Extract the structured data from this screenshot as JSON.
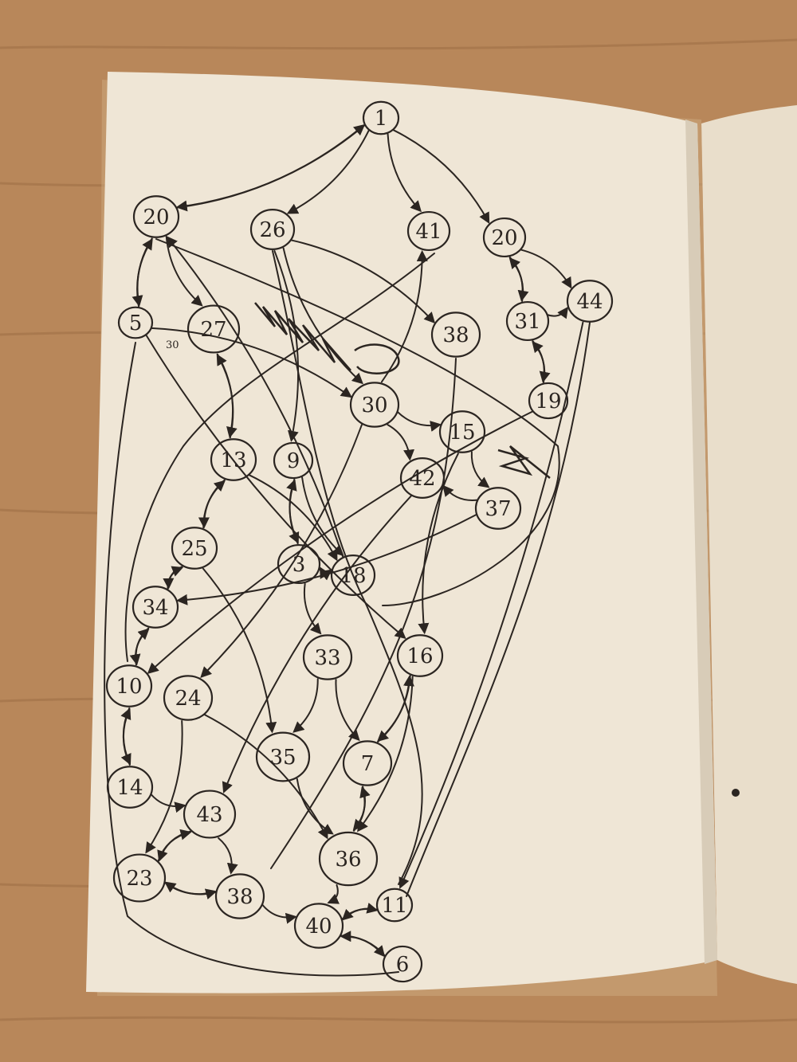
{
  "colors": {
    "desk": "#b8875a",
    "desk_grain": "#9c6d45",
    "page": "#efe6d6",
    "page_shadow": "#d8ccb8",
    "ink": "#2b2521"
  },
  "graph": {
    "nodes": [
      {
        "id": "n1",
        "label": "1"
      },
      {
        "id": "n20a",
        "label": "20"
      },
      {
        "id": "n26",
        "label": "26"
      },
      {
        "id": "n41",
        "label": "41"
      },
      {
        "id": "n20b",
        "label": "20"
      },
      {
        "id": "n5",
        "label": "5"
      },
      {
        "id": "n27",
        "label": "27"
      },
      {
        "id": "n38top",
        "label": "38"
      },
      {
        "id": "n44",
        "label": "44"
      },
      {
        "id": "n31",
        "label": "31"
      },
      {
        "id": "n19",
        "label": "19"
      },
      {
        "id": "n30",
        "label": "30"
      },
      {
        "id": "n15",
        "label": "15"
      },
      {
        "id": "n13",
        "label": "13"
      },
      {
        "id": "n9",
        "label": "9"
      },
      {
        "id": "n42",
        "label": "42"
      },
      {
        "id": "n37",
        "label": "37"
      },
      {
        "id": "n25",
        "label": "25"
      },
      {
        "id": "n3",
        "label": "3"
      },
      {
        "id": "n18",
        "label": "18"
      },
      {
        "id": "n34",
        "label": "34"
      },
      {
        "id": "n33",
        "label": "33"
      },
      {
        "id": "n16",
        "label": "16"
      },
      {
        "id": "n10",
        "label": "10"
      },
      {
        "id": "n24",
        "label": "24"
      },
      {
        "id": "n35",
        "label": "35"
      },
      {
        "id": "n7",
        "label": "7"
      },
      {
        "id": "n14",
        "label": "14"
      },
      {
        "id": "n43",
        "label": "43"
      },
      {
        "id": "n36",
        "label": "36"
      },
      {
        "id": "n23",
        "label": "23"
      },
      {
        "id": "n38",
        "label": "38"
      },
      {
        "id": "n11",
        "label": "11"
      },
      {
        "id": "n40",
        "label": "40"
      },
      {
        "id": "n6",
        "label": "6"
      }
    ],
    "side_note": "30"
  }
}
